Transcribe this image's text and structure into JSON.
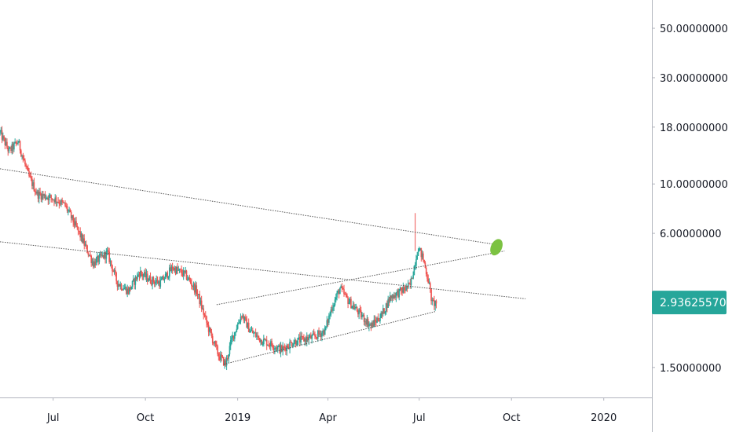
{
  "colors": {
    "up": "#26a69a",
    "down": "#ef5350",
    "axis_line": "#b2b5be",
    "trendline": "#555555",
    "marker": "#7cc242",
    "badge": "#26a69a"
  },
  "chart_data": {
    "type": "candlestick",
    "y_scale": "log",
    "ylim": [
      1.1,
      67
    ],
    "xlim": [
      "2018-05-09",
      "2020-02-18"
    ],
    "y_ticks": [
      "50.00000000",
      "30.00000000",
      "18.00000000",
      "10.00000000",
      "6.00000000",
      "1.50000000"
    ],
    "y_tick_values": [
      50,
      30,
      18,
      10,
      6,
      1.5
    ],
    "x_ticks": [
      {
        "label": "Jul",
        "date": "2018-07-01"
      },
      {
        "label": "Oct",
        "date": "2018-10-01"
      },
      {
        "label": "2019",
        "date": "2019-01-01"
      },
      {
        "label": "Apr",
        "date": "2019-04-01"
      },
      {
        "label": "Jul",
        "date": "2019-07-01"
      },
      {
        "label": "Oct",
        "date": "2019-10-01"
      },
      {
        "label": "2020",
        "date": "2020-01-01"
      }
    ],
    "last_price": {
      "label": "2.93625570",
      "value": 2.9362557
    },
    "price_path": [
      [
        "2018-05-09",
        17.0
      ],
      [
        "2018-05-18",
        14.0
      ],
      [
        "2018-05-27",
        15.5
      ],
      [
        "2018-06-06",
        11.0
      ],
      [
        "2018-06-15",
        9.0
      ],
      [
        "2018-06-24",
        8.8
      ],
      [
        "2018-07-04",
        8.5
      ],
      [
        "2018-07-13",
        8.0
      ],
      [
        "2018-07-27",
        6.0
      ],
      [
        "2018-08-10",
        4.4
      ],
      [
        "2018-08-24",
        4.9
      ],
      [
        "2018-09-03",
        3.6
      ],
      [
        "2018-09-14",
        3.3
      ],
      [
        "2018-09-25",
        4.0
      ],
      [
        "2018-10-06",
        3.7
      ],
      [
        "2018-10-16",
        3.6
      ],
      [
        "2018-10-28",
        4.2
      ],
      [
        "2018-11-10",
        3.9
      ],
      [
        "2018-11-21",
        3.3
      ],
      [
        "2018-12-02",
        2.3
      ],
      [
        "2018-12-13",
        1.7
      ],
      [
        "2018-12-20",
        1.55
      ],
      [
        "2018-12-26",
        2.0
      ],
      [
        "2019-01-05",
        2.6
      ],
      [
        "2019-01-13",
        2.2
      ],
      [
        "2019-01-24",
        2.0
      ],
      [
        "2019-02-04",
        1.9
      ],
      [
        "2019-02-14",
        1.8
      ],
      [
        "2019-02-25",
        1.95
      ],
      [
        "2019-03-07",
        2.0
      ],
      [
        "2019-03-18",
        2.05
      ],
      [
        "2019-03-29",
        2.2
      ],
      [
        "2019-04-05",
        2.8
      ],
      [
        "2019-04-13",
        3.4
      ],
      [
        "2019-04-21",
        3.0
      ],
      [
        "2019-05-03",
        2.6
      ],
      [
        "2019-05-14",
        2.3
      ],
      [
        "2019-05-25",
        2.6
      ],
      [
        "2019-06-02",
        3.1
      ],
      [
        "2019-06-13",
        3.3
      ],
      [
        "2019-06-22",
        3.5
      ],
      [
        "2019-06-30",
        5.2
      ],
      [
        "2019-07-05",
        4.6
      ],
      [
        "2019-07-10",
        3.7
      ],
      [
        "2019-07-14",
        2.9
      ],
      [
        "2019-07-18",
        2.94
      ]
    ],
    "trendlines": [
      {
        "name": "upper-resistance",
        "points": [
          [
            "2018-05-09",
            11.7
          ],
          [
            "2019-09-21",
            5.3
          ]
        ]
      },
      {
        "name": "lower-resistance",
        "points": [
          [
            "2018-05-09",
            5.5
          ],
          [
            "2019-10-15",
            3.05
          ]
        ]
      },
      {
        "name": "channel-top",
        "points": [
          [
            "2018-12-11",
            2.87
          ],
          [
            "2019-09-24",
            5.0
          ]
        ]
      },
      {
        "name": "channel-bottom",
        "points": [
          [
            "2018-12-18",
            1.55
          ],
          [
            "2019-07-18",
            2.68
          ]
        ]
      }
    ],
    "marker": {
      "name": "target-point",
      "date": "2019-09-16",
      "value": 5.2
    }
  }
}
